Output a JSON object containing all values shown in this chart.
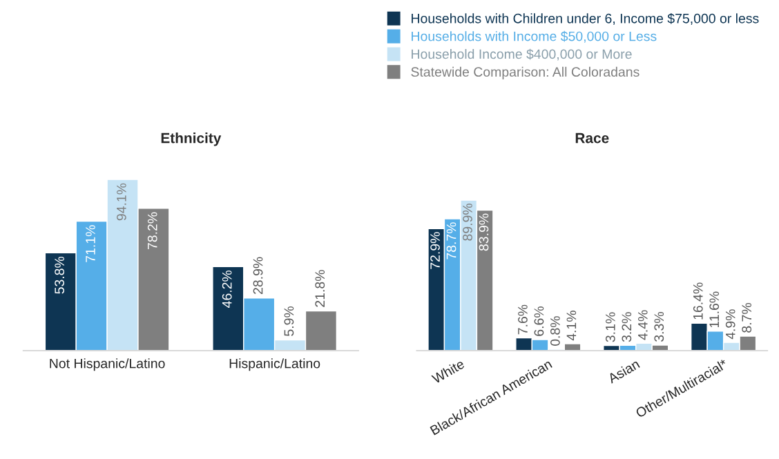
{
  "chart_data": [
    {
      "type": "bar",
      "title": "Ethnicity",
      "categories": [
        "Not Hispanic/Latino",
        "Hispanic/Latino"
      ],
      "legend": "top right",
      "series": [
        {
          "name": "Households with Children under 6, Income $75,000 or less",
          "color": "#0e3553",
          "values": [
            53.8,
            46.2
          ],
          "value_labels": [
            "53.8%",
            "46.2%"
          ]
        },
        {
          "name": "Households with Income $50,000 or Less",
          "color": "#55aee8",
          "values": [
            71.1,
            28.9
          ],
          "value_labels": [
            "71.1%",
            "28.9%"
          ]
        },
        {
          "name": "Household Income $400,000 or More",
          "color": "#c5e3f5",
          "values": [
            94.1,
            5.9
          ],
          "value_labels": [
            "94.1%",
            "5.9%"
          ]
        },
        {
          "name": "Statewide Comparison: All Coloradans",
          "color": "#7f7f7f",
          "values": [
            78.2,
            21.8
          ],
          "value_labels": [
            "78.2%",
            "21.8%"
          ]
        }
      ]
    },
    {
      "type": "bar",
      "title": "Race",
      "categories": [
        "White",
        "Black/African American",
        "Asian",
        "Other/Multiracial*"
      ],
      "series": [
        {
          "color": "#0e3553",
          "values": [
            72.9,
            7.6,
            3.1,
            16.4
          ],
          "value_labels": [
            "72.9%",
            "7.6%",
            "3.1%",
            "16.4%"
          ]
        },
        {
          "color": "#55aee8",
          "values": [
            78.7,
            6.6,
            3.2,
            11.6
          ],
          "value_labels": [
            "78.7%",
            "6.6%",
            "3.2%",
            "11.6%"
          ]
        },
        {
          "color": "#c5e3f5",
          "values": [
            89.9,
            0.8,
            4.4,
            4.9
          ],
          "value_labels": [
            "89.9%",
            "0.8%",
            "4.4%",
            "4.9%"
          ]
        },
        {
          "color": "#7f7f7f",
          "values": [
            83.9,
            4.1,
            3.3,
            8.7
          ],
          "value_labels": [
            "83.9%",
            "4.1%",
            "3.3%",
            "8.7%"
          ]
        }
      ]
    }
  ]
}
